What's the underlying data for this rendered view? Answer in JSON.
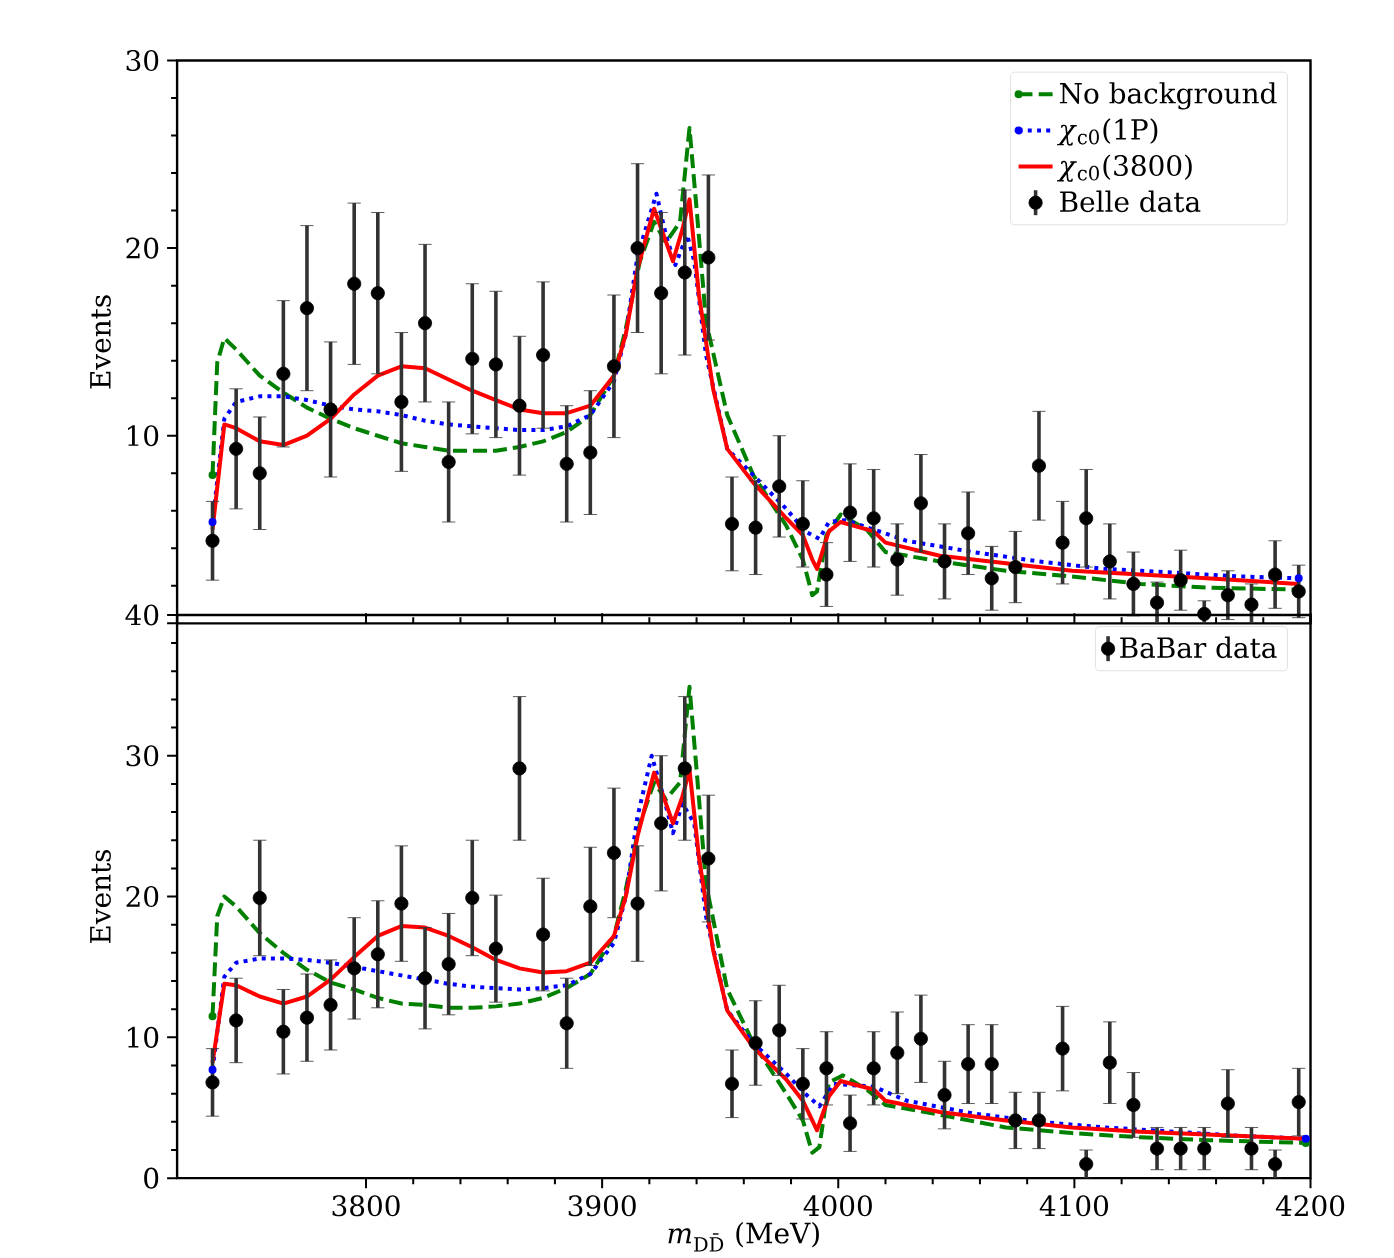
{
  "chart_data": [
    {
      "type": "line",
      "ylabel": "Events",
      "xlim": [
        3720,
        4200
      ],
      "ylim": [
        0,
        30
      ],
      "xticks": [
        3800,
        3900,
        4000,
        4100,
        4200
      ],
      "yticks": [
        {
          "value": 0,
          "label": null
        },
        10,
        20,
        30
      ],
      "tick_labels": "y",
      "legend": "top right",
      "series": [
        {
          "name": "No background",
          "color": "#008000",
          "line_style": "dashed",
          "x": [
            3735,
            3737,
            3740,
            3745,
            3755,
            3765,
            3775,
            3785,
            3795,
            3805,
            3815,
            3825,
            3835,
            3845,
            3855,
            3865,
            3875,
            3885,
            3895,
            3905,
            3910,
            3916,
            3922,
            3927,
            3933,
            3937,
            3940,
            3944,
            3953,
            3964,
            3978,
            3985,
            3989,
            3991,
            3995,
            4001,
            4012,
            4020,
            4043,
            4071,
            4099,
            4128,
            4156,
            4195
          ],
          "values": [
            7.9,
            13.9,
            15.2,
            14.6,
            13.2,
            12.3,
            11.5,
            10.9,
            10.4,
            10.0,
            9.6,
            9.4,
            9.2,
            9.2,
            9.2,
            9.4,
            9.7,
            10.2,
            11.1,
            13.2,
            15.7,
            19.3,
            21.4,
            20.3,
            21.4,
            26.4,
            22.1,
            16.1,
            11.1,
            7.9,
            5.2,
            3.4,
            1.5,
            1.7,
            4.7,
            5.8,
            5.0,
            3.8,
            3.3,
            2.8,
            2.5,
            2.1,
            1.9,
            1.8
          ]
        },
        {
          "name": "*χ*$_{c0}$(1P)",
          "color": "#0000ff",
          "line_style": "dotted",
          "x": [
            3735,
            3740,
            3745,
            3755,
            3765,
            3775,
            3785,
            3795,
            3805,
            3815,
            3825,
            3835,
            3845,
            3855,
            3865,
            3875,
            3885,
            3895,
            3905,
            3910,
            3915,
            3923,
            3927,
            3931,
            3936,
            3939,
            3944,
            3953,
            3964,
            3978,
            3986,
            3992,
            3996,
            4003,
            4015,
            4029,
            4057,
            4085,
            4113,
            4142,
            4170,
            4195
          ],
          "values": [
            5.4,
            10.9,
            11.8,
            12.1,
            12.1,
            11.9,
            11.6,
            11.4,
            11.3,
            11.1,
            10.8,
            10.6,
            10.5,
            10.4,
            10.3,
            10.3,
            10.5,
            11.1,
            12.9,
            15.4,
            19.6,
            22.9,
            20.7,
            19.1,
            20.7,
            19.3,
            14.3,
            9.3,
            7.9,
            6.1,
            4.9,
            4.5,
            5.4,
            5.5,
            5.0,
            4.4,
            3.8,
            3.3,
            2.9,
            2.7,
            2.5,
            2.4
          ]
        },
        {
          "name": "*χ*$_{c0}$(3800)",
          "color": "#ff0000",
          "line_style": "solid",
          "x": [
            3735,
            3740,
            3745,
            3755,
            3765,
            3775,
            3785,
            3795,
            3805,
            3815,
            3825,
            3835,
            3845,
            3855,
            3865,
            3875,
            3885,
            3895,
            3905,
            3910,
            3915,
            3922,
            3926,
            3930,
            3934,
            3937,
            3941,
            3947,
            3953,
            3964,
            3978,
            3985,
            3989,
            3991,
            3996,
            4001,
            4015,
            4020,
            4043,
            4071,
            4099,
            4128,
            4156,
            4195
          ],
          "values": [
            5.0,
            10.6,
            10.4,
            9.7,
            9.5,
            10.0,
            10.9,
            12.2,
            13.2,
            13.7,
            13.6,
            13.0,
            12.4,
            11.9,
            11.4,
            11.2,
            11.2,
            11.6,
            13.2,
            15.4,
            18.9,
            22.1,
            20.7,
            19.3,
            21.0,
            22.6,
            17.5,
            12.5,
            9.3,
            7.5,
            5.6,
            4.7,
            3.4,
            2.9,
            4.9,
            5.4,
            4.9,
            4.3,
            3.6,
            3.2,
            2.8,
            2.6,
            2.4,
            2.1
          ]
        },
        {
          "name": "Belle data",
          "type": "scatter",
          "color": "#000000",
          "marker": "circle",
          "x": [
            3735,
            3745,
            3755,
            3765,
            3775,
            3785,
            3795,
            3805,
            3815,
            3825,
            3835,
            3845,
            3855,
            3865,
            3875,
            3885,
            3895,
            3905,
            3915,
            3925,
            3935,
            3945,
            3955,
            3965,
            3975,
            3985,
            3995,
            4005,
            4015,
            4025,
            4035,
            4045,
            4055,
            4065,
            4075,
            4085,
            4095,
            4105,
            4115,
            4125,
            4135,
            4145,
            4155,
            4165,
            4175,
            4185,
            4195
          ],
          "values": [
            4.4,
            9.3,
            8.0,
            13.3,
            16.8,
            11.4,
            18.1,
            17.6,
            11.8,
            16.0,
            8.6,
            14.1,
            13.8,
            11.6,
            14.3,
            8.5,
            9.1,
            13.7,
            20.0,
            17.6,
            18.7,
            19.5,
            5.3,
            5.1,
            7.3,
            5.3,
            2.6,
            5.9,
            5.6,
            3.4,
            6.4,
            3.3,
            4.8,
            2.4,
            3.0,
            8.4,
            4.3,
            5.6,
            3.3,
            2.1,
            1.1,
            2.3,
            0.5,
            1.5,
            1.0,
            2.6,
            1.7
          ],
          "errors": [
            2.1,
            3.2,
            3.0,
            3.9,
            4.4,
            3.6,
            4.3,
            4.3,
            3.7,
            4.2,
            3.2,
            4.0,
            3.9,
            3.7,
            3.9,
            3.1,
            3.3,
            3.8,
            4.5,
            4.3,
            4.4,
            4.4,
            2.5,
            2.5,
            2.7,
            2.3,
            1.7,
            2.6,
            2.6,
            1.9,
            2.6,
            2.0,
            2.2,
            1.7,
            1.9,
            2.9,
            2.2,
            2.6,
            2.0,
            1.7,
            1.1,
            1.6,
            0.7,
            1.3,
            1.1,
            1.8,
            1.4
          ]
        }
      ]
    },
    {
      "type": "line",
      "xlabel": "*m*$_{DD̄}$ (MeV)",
      "ylabel": "Events",
      "xlim": [
        3720,
        4200
      ],
      "ylim": [
        0,
        40
      ],
      "xticks": [
        3800,
        3900,
        4000,
        4100,
        4200
      ],
      "yticks": [
        0,
        10,
        20,
        30,
        40
      ],
      "legend": "top right",
      "series": [
        {
          "color": "#008000",
          "line_style": "dashed",
          "x": [
            3735,
            3737,
            3740,
            3745,
            3755,
            3765,
            3775,
            3785,
            3795,
            3805,
            3815,
            3825,
            3835,
            3845,
            3855,
            3865,
            3875,
            3885,
            3895,
            3905,
            3910,
            3916,
            3922,
            3927,
            3933,
            3937,
            3940,
            3944,
            3953,
            3964,
            3978,
            3985,
            3989,
            3992,
            3996,
            4002,
            4012,
            4020,
            4043,
            4071,
            4099,
            4128,
            4156,
            4198
          ],
          "values": [
            11.5,
            18.6,
            20.0,
            19.3,
            17.4,
            16.0,
            14.8,
            13.9,
            13.4,
            12.8,
            12.4,
            12.3,
            12.1,
            12.1,
            12.2,
            12.4,
            12.8,
            13.5,
            14.5,
            17.2,
            20.5,
            25.2,
            28.1,
            26.9,
            28.1,
            34.9,
            29.0,
            20.9,
            13.4,
            9.6,
            6.0,
            4.1,
            1.8,
            2.2,
            6.8,
            7.3,
            6.3,
            5.2,
            4.5,
            3.6,
            3.2,
            2.9,
            2.7,
            2.5
          ]
        },
        {
          "color": "#0000ff",
          "line_style": "dotted",
          "x": [
            3735,
            3740,
            3745,
            3755,
            3765,
            3775,
            3785,
            3795,
            3805,
            3815,
            3825,
            3835,
            3845,
            3855,
            3865,
            3875,
            3885,
            3895,
            3905,
            3910,
            3915,
            3921,
            3926,
            3930,
            3934,
            3939,
            3944,
            3953,
            3964,
            3978,
            3986,
            3992,
            3998,
            4015,
            4029,
            4057,
            4085,
            4113,
            4142,
            4170,
            4198
          ],
          "values": [
            7.7,
            14.3,
            15.3,
            15.6,
            15.6,
            15.5,
            15.3,
            15.0,
            14.7,
            14.4,
            14.1,
            13.8,
            13.6,
            13.5,
            13.4,
            13.5,
            13.7,
            14.5,
            16.7,
            20.0,
            25.7,
            30.0,
            27.1,
            24.5,
            26.6,
            25.2,
            18.6,
            11.9,
            9.6,
            7.4,
            6.0,
            5.1,
            6.7,
            6.5,
            5.5,
            4.6,
            4.0,
            3.6,
            3.3,
            3.0,
            2.8
          ]
        },
        {
          "color": "#ff0000",
          "line_style": "solid",
          "x": [
            3735,
            3740,
            3745,
            3755,
            3765,
            3775,
            3785,
            3795,
            3805,
            3815,
            3825,
            3835,
            3845,
            3855,
            3865,
            3875,
            3885,
            3895,
            3905,
            3910,
            3915,
            3922,
            3926,
            3930,
            3934,
            3937,
            3941,
            3947,
            3953,
            3964,
            3978,
            3985,
            3991,
            3996,
            4001,
            4015,
            4020,
            4043,
            4071,
            4099,
            4128,
            4156,
            4198
          ],
          "values": [
            8.2,
            13.8,
            13.7,
            12.9,
            12.4,
            12.9,
            14.1,
            15.7,
            17.2,
            17.9,
            17.8,
            17.2,
            16.4,
            15.5,
            14.9,
            14.6,
            14.7,
            15.3,
            17.2,
            20.0,
            24.3,
            28.8,
            27.1,
            25.2,
            27.1,
            29.0,
            22.8,
            16.2,
            11.9,
            9.3,
            7.0,
            5.5,
            3.4,
            5.8,
            6.9,
            6.3,
            5.5,
            4.7,
            4.1,
            3.6,
            3.3,
            3.1,
            2.8
          ]
        },
        {
          "name": "BaBar data",
          "type": "scatter",
          "color": "#000000",
          "marker": "circle",
          "x": [
            3735,
            3745,
            3755,
            3765,
            3775,
            3785,
            3795,
            3805,
            3815,
            3825,
            3835,
            3845,
            3855,
            3865,
            3875,
            3885,
            3895,
            3905,
            3915,
            3925,
            3935,
            3945,
            3955,
            3965,
            3975,
            3985,
            3995,
            4005,
            4015,
            4025,
            4035,
            4045,
            4055,
            4065,
            4075,
            4085,
            4095,
            4105,
            4115,
            4125,
            4135,
            4145,
            4155,
            4165,
            4175,
            4185,
            4195
          ],
          "values": [
            6.8,
            11.2,
            19.9,
            10.4,
            11.4,
            12.3,
            14.9,
            15.9,
            19.5,
            14.2,
            15.2,
            19.9,
            16.3,
            29.1,
            17.3,
            11.0,
            19.3,
            23.1,
            19.5,
            25.2,
            29.1,
            22.7,
            6.7,
            9.6,
            10.5,
            6.7,
            7.8,
            3.9,
            7.8,
            8.9,
            9.9,
            5.9,
            8.1,
            8.1,
            4.1,
            4.1,
            9.2,
            1.0,
            8.2,
            5.2,
            2.1,
            2.1,
            2.1,
            5.3,
            2.1,
            1.0,
            5.4
          ],
          "errors": [
            2.4,
            3.0,
            4.1,
            3.0,
            3.1,
            3.2,
            3.6,
            3.8,
            4.1,
            3.6,
            3.6,
            4.1,
            3.8,
            5.1,
            4.0,
            3.2,
            4.2,
            4.6,
            4.1,
            4.8,
            5.1,
            4.5,
            2.4,
            3.0,
            3.2,
            2.5,
            2.6,
            2.0,
            2.6,
            2.9,
            3.1,
            2.4,
            2.8,
            2.8,
            2.0,
            2.0,
            3.0,
            1.0,
            2.9,
            2.3,
            1.5,
            1.5,
            1.5,
            2.4,
            1.5,
            1.0,
            2.4
          ]
        }
      ]
    }
  ]
}
